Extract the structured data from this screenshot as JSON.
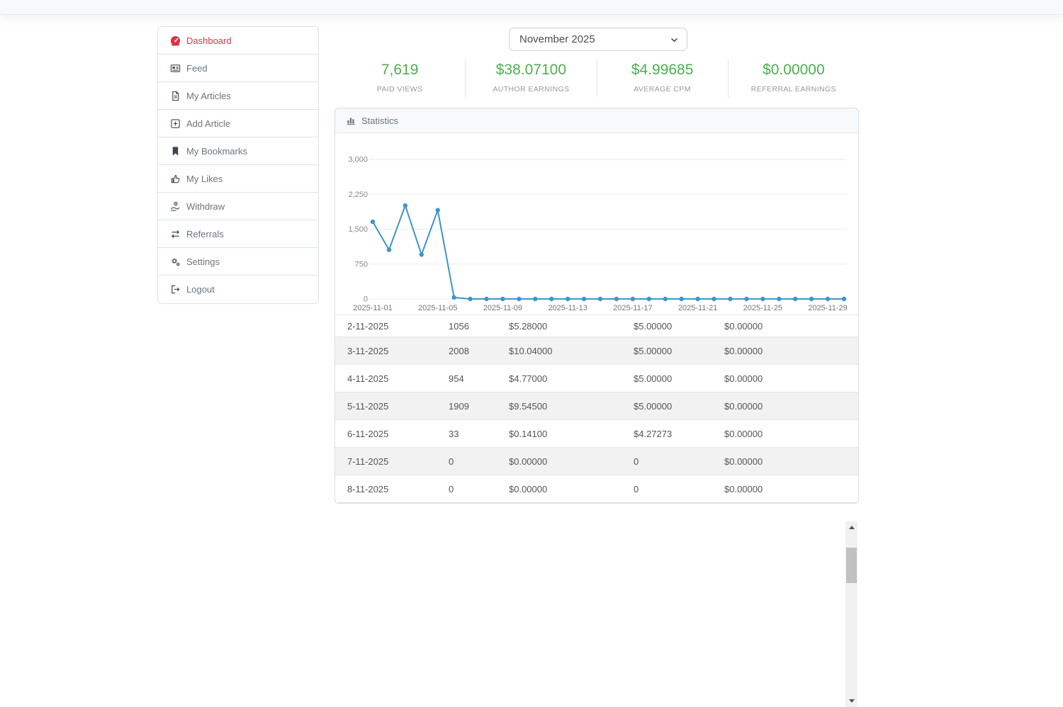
{
  "sidebar": {
    "items": [
      {
        "label": "Dashboard",
        "icon": "dashboard-gauge-icon",
        "active": true
      },
      {
        "label": "Feed",
        "icon": "newspaper-icon",
        "active": false
      },
      {
        "label": "My Articles",
        "icon": "file-lines-icon",
        "active": false
      },
      {
        "label": "Add Article",
        "icon": "square-plus-icon",
        "active": false
      },
      {
        "label": "My Bookmarks",
        "icon": "bookmark-icon",
        "active": false
      },
      {
        "label": "My Likes",
        "icon": "thumbs-up-icon",
        "active": false
      },
      {
        "label": "Withdraw",
        "icon": "hand-coin-icon",
        "active": false
      },
      {
        "label": "Referrals",
        "icon": "exchange-arrows-icon",
        "active": false
      },
      {
        "label": "Settings",
        "icon": "gears-icon",
        "active": false
      },
      {
        "label": "Logout",
        "icon": "sign-out-icon",
        "active": false
      }
    ]
  },
  "main": {
    "month_select": {
      "value": "November 2025",
      "icon": "chevron-down-icon"
    },
    "stats": [
      {
        "value": "7,619",
        "label": "PAID VIEWS"
      },
      {
        "value": "$38.07100",
        "label": "AUTHOR EARNINGS"
      },
      {
        "value": "$4.99685",
        "label": "AVERAGE CPM"
      },
      {
        "value": "$0.00000",
        "label": "REFERRAL EARNINGS"
      }
    ],
    "statistics_panel": {
      "title": "Statistics",
      "icon": "bar-chart-icon"
    },
    "table": {
      "rows": [
        [
          "2-11-2025",
          "1056",
          "$5.28000",
          "$5.00000",
          "$0.00000"
        ],
        [
          "3-11-2025",
          "2008",
          "$10.04000",
          "$5.00000",
          "$0.00000"
        ],
        [
          "4-11-2025",
          "954",
          "$4.77000",
          "$5.00000",
          "$0.00000"
        ],
        [
          "5-11-2025",
          "1909",
          "$9.54500",
          "$5.00000",
          "$0.00000"
        ],
        [
          "6-11-2025",
          "33",
          "$0.14100",
          "$4.27273",
          "$0.00000"
        ],
        [
          "7-11-2025",
          "0",
          "$0.00000",
          "0",
          "$0.00000"
        ],
        [
          "8-11-2025",
          "0",
          "$0.00000",
          "0",
          "$0.00000"
        ]
      ]
    }
  },
  "chart_data": {
    "type": "line",
    "title": "Statistics",
    "x": [
      "2025-11-01",
      "2025-11-02",
      "2025-11-03",
      "2025-11-04",
      "2025-11-05",
      "2025-11-06",
      "2025-11-07",
      "2025-11-08",
      "2025-11-09",
      "2025-11-10",
      "2025-11-11",
      "2025-11-12",
      "2025-11-13",
      "2025-11-14",
      "2025-11-15",
      "2025-11-16",
      "2025-11-17",
      "2025-11-18",
      "2025-11-19",
      "2025-11-20",
      "2025-11-21",
      "2025-11-22",
      "2025-11-23",
      "2025-11-24",
      "2025-11-25",
      "2025-11-26",
      "2025-11-27",
      "2025-11-28",
      "2025-11-29",
      "2025-11-30"
    ],
    "values": [
      1659,
      1056,
      2008,
      954,
      1909,
      33,
      0,
      0,
      0,
      0,
      0,
      0,
      0,
      0,
      0,
      0,
      0,
      0,
      0,
      0,
      0,
      0,
      0,
      0,
      0,
      0,
      0,
      0,
      0,
      0
    ],
    "x_tick_labels": [
      "2025-11-01",
      "2025-11-05",
      "2025-11-09",
      "2025-11-13",
      "2025-11-17",
      "2025-11-21",
      "2025-11-25",
      "2025-11-29"
    ],
    "x_tick_every": 4,
    "y_ticks": [
      0,
      750,
      1500,
      2250,
      3000
    ],
    "y_tick_labels": [
      "0",
      "750",
      "1,500",
      "2,250",
      "3,000"
    ],
    "ylim": [
      0,
      3000
    ],
    "xlabel": "",
    "ylabel": "",
    "grid": true,
    "legend": false,
    "line_color": "#3e95cd"
  },
  "colors": {
    "accent_green": "#4caf50",
    "active_red": "#dc3545",
    "chart_blue": "#3e95cd",
    "grid_line": "#ececec",
    "border": "#dee2e6",
    "stripe": "#f2f2f2"
  }
}
